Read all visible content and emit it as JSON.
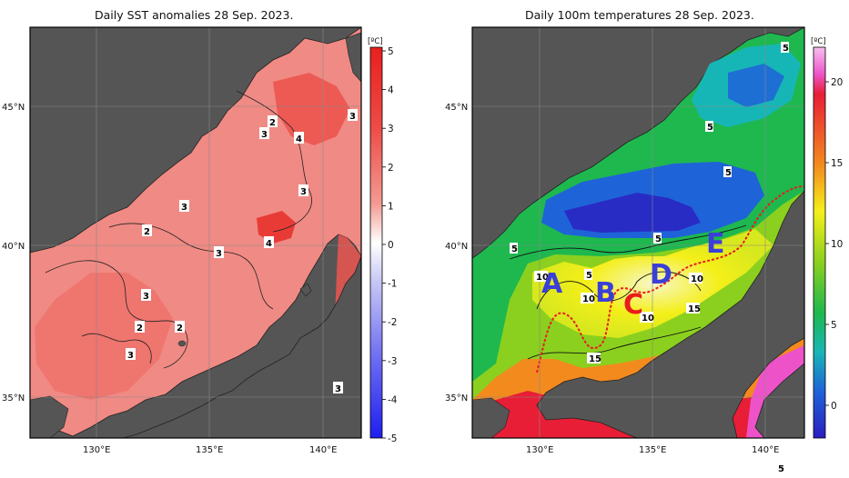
{
  "left_map": {
    "title": "Daily SST anomalies 28 Sep. 2023.",
    "unit": "[ºC]",
    "colorbar_ticks": [
      "5",
      "4",
      "3",
      "2",
      "1",
      "0",
      "-1",
      "-2",
      "-3",
      "-4",
      "-5"
    ],
    "lat_labels": [
      "45°N",
      "40°N",
      "35°N"
    ],
    "lon_labels": [
      "130°E",
      "135°E",
      "140°E"
    ],
    "contour_labels": [
      "2",
      "3",
      "4",
      "3",
      "3",
      "3",
      "2",
      "4",
      "3",
      "3",
      "3",
      "2",
      "2",
      "3"
    ]
  },
  "right_map": {
    "title": "Daily 100m temperatures 28 Sep. 2023.",
    "unit": "[ºC]",
    "colorbar_ticks": [
      "20",
      "15",
      "10",
      "5",
      "0"
    ],
    "lat_labels": [
      "45°N",
      "40°N",
      "35°N"
    ],
    "lon_labels": [
      "130°E",
      "135°E",
      "140°E"
    ],
    "contour_labels": [
      "5",
      "5",
      "5",
      "5",
      "5",
      "5",
      "10",
      "10",
      "10",
      "10",
      "15",
      "15",
      "5"
    ],
    "region_letters": [
      "A",
      "B",
      "C",
      "D",
      "E"
    ]
  },
  "colors": {
    "land": "#555555",
    "anomaly_positive_max": "#e8201f",
    "anomaly_negative_max": "#1e1eef",
    "front_line": "#e81c1c",
    "letter_color": "#3b3fd8",
    "letter_c_color": "#e81c1c"
  }
}
